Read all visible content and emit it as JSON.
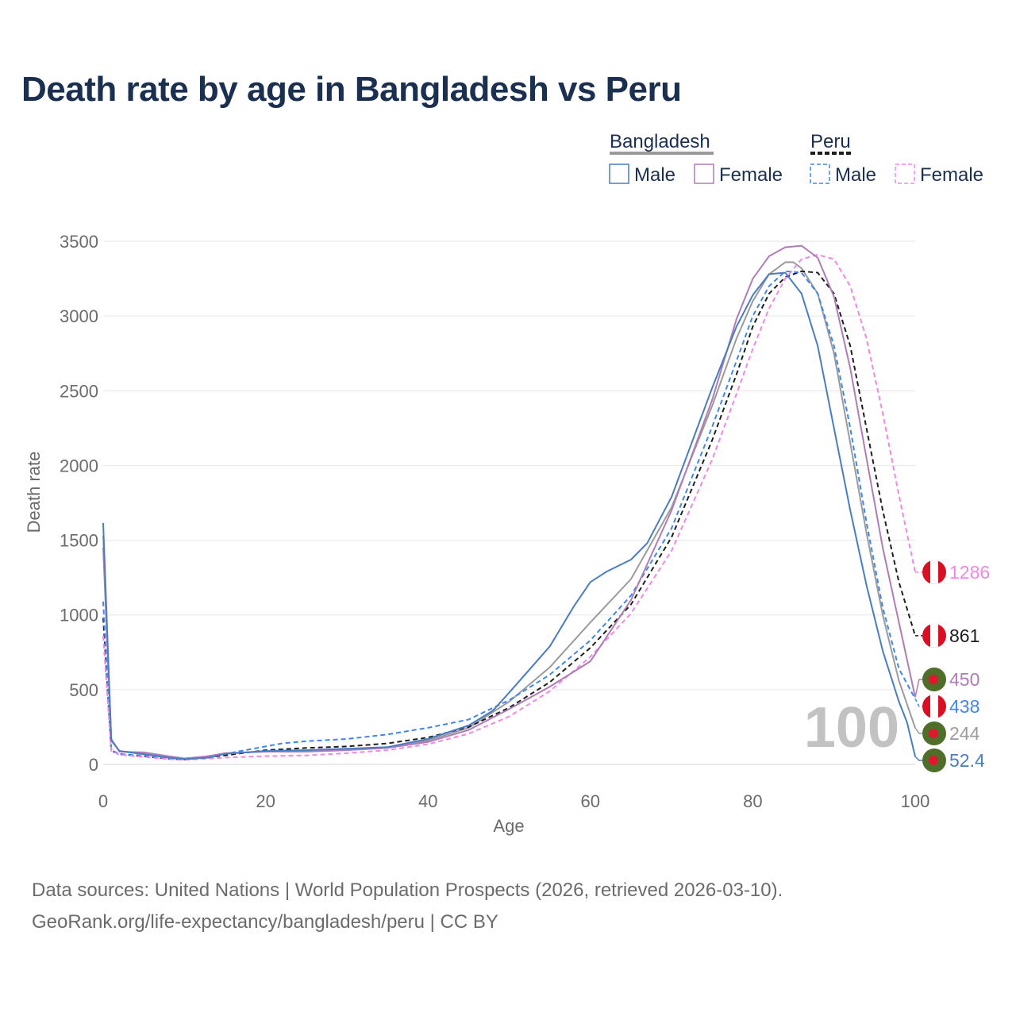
{
  "chart_data": {
    "type": "line",
    "title": "Death rate by age in Bangladesh vs Peru",
    "xlabel": "Age",
    "ylabel": "Death rate",
    "xlim": [
      0,
      100
    ],
    "ylim": [
      0,
      3500
    ],
    "x_ticks": [
      "0",
      "20",
      "40",
      "60",
      "80",
      "100"
    ],
    "y_ticks": [
      "0",
      "500",
      "1000",
      "1500",
      "2000",
      "2500",
      "3000",
      "3500"
    ],
    "year_watermark": "100",
    "legend": {
      "groups": [
        {
          "country": "Bangladesh",
          "entries": [
            "Male",
            "Female"
          ],
          "style": "solid"
        },
        {
          "country": "Peru",
          "entries": [
            "Male",
            "Female"
          ],
          "style": "dashed"
        }
      ]
    },
    "series": [
      {
        "name": "Bangladesh Male",
        "country": "Bangladesh",
        "sex": "male",
        "color": "#4a7cc4",
        "dash": false,
        "end_label": "52.4",
        "points": [
          [
            0,
            1615
          ],
          [
            1,
            160
          ],
          [
            2,
            90
          ],
          [
            5,
            68
          ],
          [
            8,
            45
          ],
          [
            10,
            35
          ],
          [
            13,
            45
          ],
          [
            15,
            70
          ],
          [
            20,
            90
          ],
          [
            25,
            95
          ],
          [
            30,
            105
          ],
          [
            35,
            115
          ],
          [
            40,
            170
          ],
          [
            45,
            260
          ],
          [
            48,
            360
          ],
          [
            50,
            480
          ],
          [
            55,
            790
          ],
          [
            58,
            1060
          ],
          [
            60,
            1220
          ],
          [
            62,
            1290
          ],
          [
            65,
            1370
          ],
          [
            67,
            1480
          ],
          [
            70,
            1790
          ],
          [
            75,
            2520
          ],
          [
            78,
            2930
          ],
          [
            80,
            3140
          ],
          [
            82,
            3280
          ],
          [
            84,
            3290
          ],
          [
            86,
            3150
          ],
          [
            88,
            2800
          ],
          [
            90,
            2250
          ],
          [
            92,
            1700
          ],
          [
            94,
            1200
          ],
          [
            96,
            760
          ],
          [
            98,
            420
          ],
          [
            99,
            280
          ],
          [
            100,
            52.4
          ]
        ]
      },
      {
        "name": "Bangladesh Female",
        "country": "Bangladesh",
        "sex": "female",
        "color": "#b07cb8",
        "dash": false,
        "end_label": "450",
        "points": [
          [
            0,
            1450
          ],
          [
            1,
            170
          ],
          [
            2,
            85
          ],
          [
            5,
            80
          ],
          [
            8,
            55
          ],
          [
            10,
            40
          ],
          [
            13,
            55
          ],
          [
            15,
            75
          ],
          [
            20,
            85
          ],
          [
            25,
            85
          ],
          [
            30,
            95
          ],
          [
            35,
            110
          ],
          [
            40,
            150
          ],
          [
            45,
            230
          ],
          [
            50,
            370
          ],
          [
            55,
            520
          ],
          [
            60,
            690
          ],
          [
            65,
            1100
          ],
          [
            70,
            1700
          ],
          [
            75,
            2440
          ],
          [
            78,
            2980
          ],
          [
            80,
            3250
          ],
          [
            82,
            3400
          ],
          [
            84,
            3460
          ],
          [
            86,
            3470
          ],
          [
            88,
            3390
          ],
          [
            90,
            3130
          ],
          [
            92,
            2650
          ],
          [
            94,
            2050
          ],
          [
            96,
            1450
          ],
          [
            98,
            950
          ],
          [
            100,
            450
          ]
        ]
      },
      {
        "name": "Bangladesh",
        "country": "Bangladesh",
        "sex": "both",
        "color": "#9b9b9b",
        "dash": false,
        "end_label": "244",
        "points": [
          [
            0,
            1530
          ],
          [
            1,
            165
          ],
          [
            2,
            88
          ],
          [
            5,
            74
          ],
          [
            8,
            50
          ],
          [
            10,
            38
          ],
          [
            13,
            50
          ],
          [
            15,
            72
          ],
          [
            20,
            88
          ],
          [
            25,
            90
          ],
          [
            30,
            100
          ],
          [
            35,
            112
          ],
          [
            40,
            160
          ],
          [
            45,
            245
          ],
          [
            50,
            420
          ],
          [
            55,
            650
          ],
          [
            60,
            950
          ],
          [
            65,
            1240
          ],
          [
            70,
            1720
          ],
          [
            75,
            2400
          ],
          [
            78,
            2850
          ],
          [
            80,
            3100
          ],
          [
            82,
            3280
          ],
          [
            84,
            3360
          ],
          [
            85,
            3360
          ],
          [
            86,
            3320
          ],
          [
            88,
            3150
          ],
          [
            90,
            2750
          ],
          [
            92,
            2150
          ],
          [
            94,
            1550
          ],
          [
            96,
            1000
          ],
          [
            98,
            560
          ],
          [
            100,
            244
          ]
        ]
      },
      {
        "name": "Peru Male",
        "country": "Peru",
        "sex": "male",
        "color": "#3f86f0",
        "dash": true,
        "end_label": "438",
        "points": [
          [
            0,
            1090
          ],
          [
            1,
            95
          ],
          [
            2,
            70
          ],
          [
            5,
            58
          ],
          [
            8,
            42
          ],
          [
            10,
            35
          ],
          [
            15,
            70
          ],
          [
            18,
            100
          ],
          [
            20,
            120
          ],
          [
            22,
            140
          ],
          [
            25,
            155
          ],
          [
            30,
            170
          ],
          [
            35,
            200
          ],
          [
            40,
            245
          ],
          [
            45,
            300
          ],
          [
            50,
            430
          ],
          [
            55,
            600
          ],
          [
            60,
            830
          ],
          [
            65,
            1130
          ],
          [
            70,
            1580
          ],
          [
            75,
            2260
          ],
          [
            78,
            2700
          ],
          [
            80,
            3000
          ],
          [
            82,
            3200
          ],
          [
            84,
            3300
          ],
          [
            86,
            3290
          ],
          [
            88,
            3150
          ],
          [
            90,
            2800
          ],
          [
            92,
            2250
          ],
          [
            94,
            1620
          ],
          [
            96,
            1050
          ],
          [
            98,
            640
          ],
          [
            100,
            438
          ]
        ]
      },
      {
        "name": "Peru Female",
        "country": "Peru",
        "sex": "female",
        "color": "#f286e6",
        "dash": true,
        "end_label": "1286",
        "points": [
          [
            0,
            860
          ],
          [
            1,
            90
          ],
          [
            2,
            65
          ],
          [
            5,
            50
          ],
          [
            8,
            35
          ],
          [
            10,
            30
          ],
          [
            15,
            45
          ],
          [
            20,
            55
          ],
          [
            25,
            60
          ],
          [
            30,
            75
          ],
          [
            35,
            95
          ],
          [
            40,
            135
          ],
          [
            45,
            205
          ],
          [
            50,
            320
          ],
          [
            55,
            490
          ],
          [
            60,
            720
          ],
          [
            65,
            1010
          ],
          [
            70,
            1430
          ],
          [
            75,
            2040
          ],
          [
            78,
            2480
          ],
          [
            80,
            2780
          ],
          [
            82,
            3050
          ],
          [
            84,
            3250
          ],
          [
            86,
            3380
          ],
          [
            88,
            3410
          ],
          [
            90,
            3380
          ],
          [
            92,
            3200
          ],
          [
            94,
            2850
          ],
          [
            96,
            2350
          ],
          [
            98,
            1800
          ],
          [
            100,
            1286
          ]
        ]
      },
      {
        "name": "Peru",
        "country": "Peru",
        "sex": "both",
        "color": "#1e1e1e",
        "dash": true,
        "end_label": "861",
        "points": [
          [
            0,
            980
          ],
          [
            1,
            92
          ],
          [
            2,
            68
          ],
          [
            5,
            54
          ],
          [
            8,
            38
          ],
          [
            10,
            32
          ],
          [
            15,
            60
          ],
          [
            20,
            95
          ],
          [
            25,
            110
          ],
          [
            30,
            120
          ],
          [
            35,
            140
          ],
          [
            40,
            180
          ],
          [
            45,
            250
          ],
          [
            50,
            380
          ],
          [
            55,
            550
          ],
          [
            60,
            780
          ],
          [
            65,
            1070
          ],
          [
            70,
            1520
          ],
          [
            75,
            2170
          ],
          [
            78,
            2610
          ],
          [
            80,
            2930
          ],
          [
            82,
            3150
          ],
          [
            84,
            3260
          ],
          [
            86,
            3300
          ],
          [
            88,
            3290
          ],
          [
            90,
            3150
          ],
          [
            92,
            2800
          ],
          [
            94,
            2250
          ],
          [
            96,
            1700
          ],
          [
            98,
            1220
          ],
          [
            100,
            861
          ]
        ]
      }
    ]
  },
  "sources": {
    "line1": "Data sources: United Nations | World Population Prospects (2026, retrieved 2026-03-10).",
    "line2": "GeoRank.org/life-expectancy/bangladesh/peru | CC BY"
  }
}
